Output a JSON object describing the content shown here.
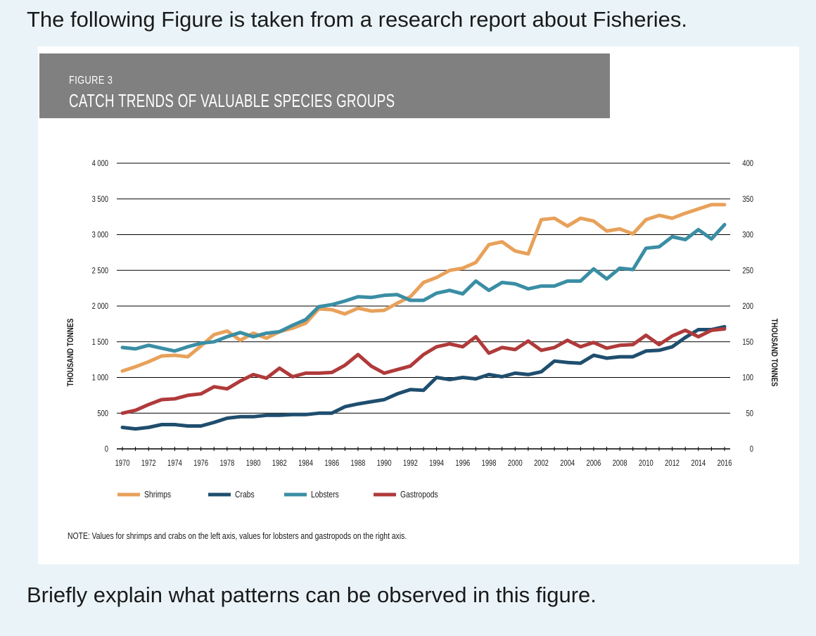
{
  "intro_text": "The following Figure is taken from a research report about Fisheries.",
  "question_text": "Briefly explain what patterns can be observed in this figure.",
  "chart_data": {
    "type": "line",
    "figure_label": "FIGURE 3",
    "title": "CATCH TRENDS OF VALUABLE SPECIES GROUPS",
    "ylabel_left": "THOUSAND TONNES",
    "ylabel_right": "THOUSAND TONNES",
    "ylim_left": [
      0,
      4000
    ],
    "ylim_right": [
      0,
      400
    ],
    "yticks_left": [
      "0",
      "500",
      "1 000",
      "1 500",
      "2 000",
      "2 500",
      "3 000",
      "3 500",
      "4 000"
    ],
    "yticks_right": [
      "0",
      "50",
      "100",
      "150",
      "200",
      "250",
      "300",
      "350",
      "400"
    ],
    "xticks": [
      "1970",
      "1972",
      "1974",
      "1976",
      "1978",
      "1980",
      "1982",
      "1984",
      "1986",
      "1988",
      "1990",
      "1992",
      "1994",
      "1996",
      "1998",
      "2000",
      "2002",
      "2004",
      "2006",
      "2008",
      "2010",
      "2012",
      "2014",
      "2016"
    ],
    "grid": true,
    "legend_position": "bottom-left",
    "x": [
      1970,
      1971,
      1972,
      1973,
      1974,
      1975,
      1976,
      1977,
      1978,
      1979,
      1980,
      1981,
      1982,
      1983,
      1984,
      1985,
      1986,
      1987,
      1988,
      1989,
      1990,
      1991,
      1992,
      1993,
      1994,
      1995,
      1996,
      1997,
      1998,
      1999,
      2000,
      2001,
      2002,
      2003,
      2004,
      2005,
      2006,
      2007,
      2008,
      2009,
      2010,
      2011,
      2012,
      2013,
      2014,
      2015,
      2016
    ],
    "series": [
      {
        "name": "Shrimps",
        "axis": "left",
        "color": "#e8a15a",
        "values": [
          1090,
          1150,
          1220,
          1300,
          1310,
          1290,
          1440,
          1600,
          1650,
          1520,
          1620,
          1550,
          1640,
          1690,
          1760,
          1960,
          1950,
          1890,
          1970,
          1930,
          1940,
          2040,
          2130,
          2330,
          2400,
          2500,
          2530,
          2610,
          2860,
          2900,
          2770,
          2730,
          3210,
          3230,
          3120,
          3230,
          3190,
          3050,
          3080,
          3010,
          3210,
          3270,
          3230,
          3300,
          3360,
          3420,
          3420
        ]
      },
      {
        "name": "Crabs",
        "axis": "left",
        "color": "#1f4e6e",
        "values": [
          300,
          280,
          300,
          340,
          340,
          320,
          320,
          370,
          430,
          450,
          450,
          470,
          470,
          480,
          480,
          500,
          500,
          590,
          630,
          660,
          690,
          770,
          830,
          820,
          1000,
          970,
          1000,
          980,
          1040,
          1010,
          1060,
          1040,
          1080,
          1230,
          1210,
          1200,
          1310,
          1270,
          1290,
          1290,
          1370,
          1380,
          1430,
          1560,
          1670,
          1670,
          1710
        ]
      },
      {
        "name": "Lobsters",
        "axis": "right",
        "color": "#3a8ea4",
        "values": [
          142,
          140,
          145,
          141,
          137,
          143,
          148,
          150,
          157,
          163,
          157,
          162,
          164,
          173,
          181,
          199,
          202,
          207,
          213,
          212,
          215,
          216,
          208,
          208,
          218,
          222,
          217,
          235,
          222,
          233,
          231,
          224,
          228,
          228,
          235,
          235,
          252,
          238,
          253,
          251,
          281,
          283,
          297,
          293,
          307,
          294,
          314
        ]
      },
      {
        "name": "Gastropods",
        "axis": "right",
        "color": "#b03a3a",
        "values": [
          50,
          54,
          62,
          69,
          70,
          75,
          77,
          87,
          84,
          95,
          104,
          99,
          113,
          101,
          106,
          106,
          107,
          117,
          132,
          116,
          106,
          111,
          116,
          132,
          143,
          147,
          143,
          157,
          134,
          142,
          139,
          151,
          138,
          142,
          152,
          143,
          149,
          141,
          145,
          146,
          159,
          146,
          158,
          166,
          157,
          166,
          168
        ]
      }
    ],
    "note": "NOTE: Values for shrimps and crabs on the left axis, values for lobsters and gastropods on the right axis."
  }
}
